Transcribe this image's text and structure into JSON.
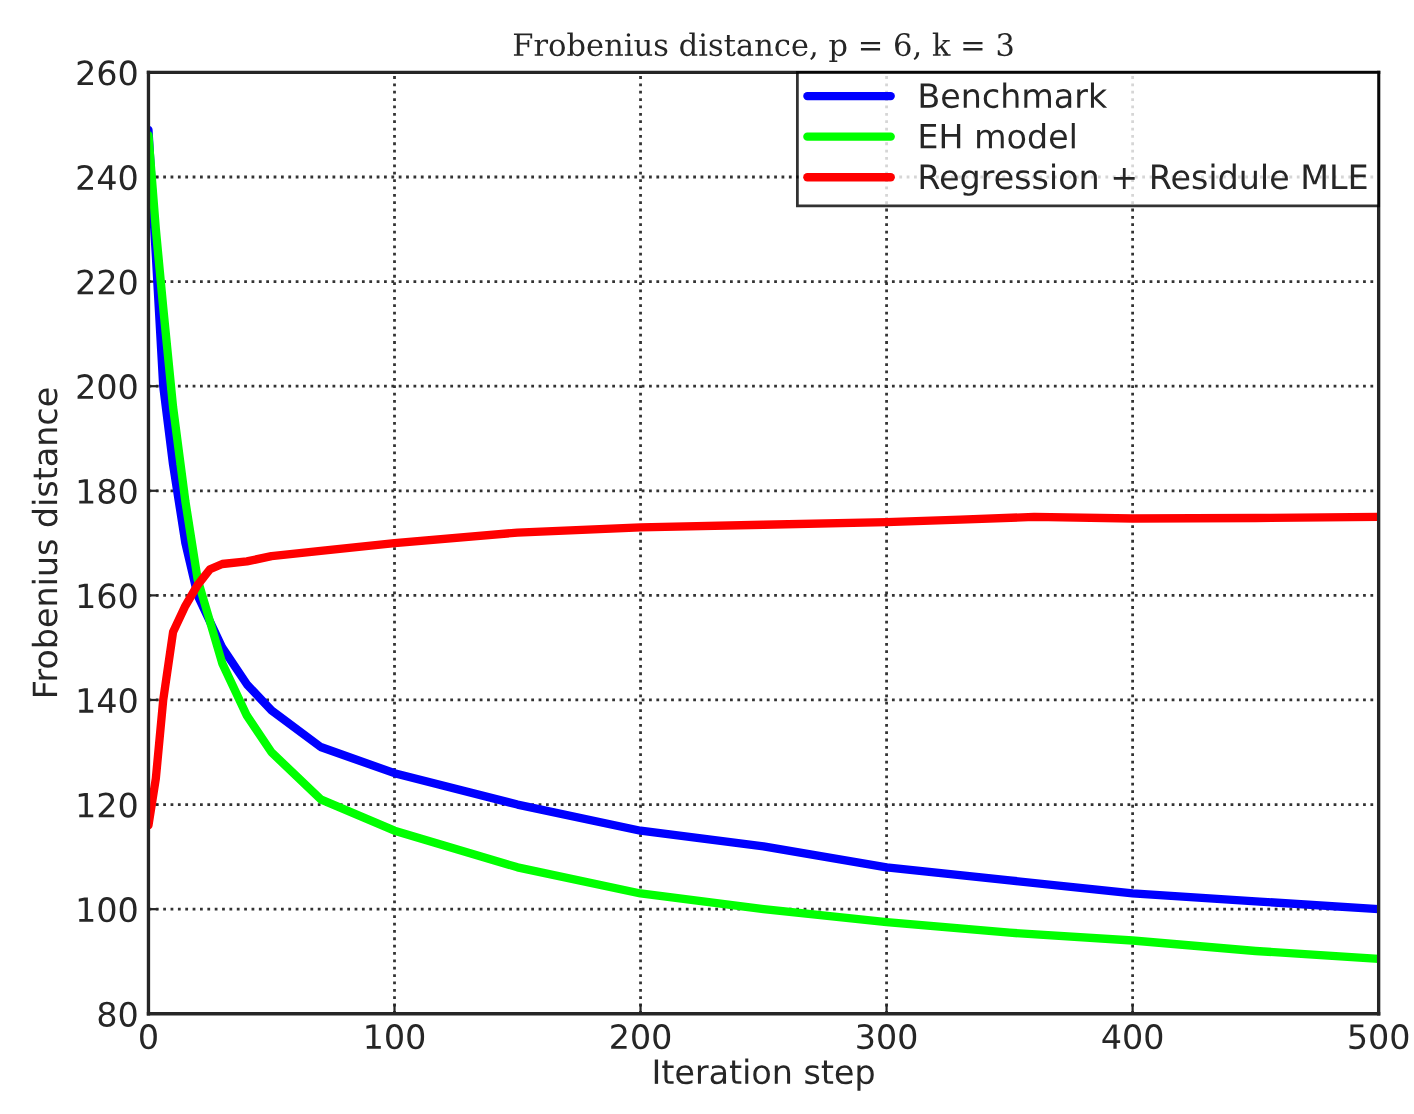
{
  "chart_data": {
    "type": "line",
    "title": "Frobenius distance, p = 6, k = 3",
    "xlabel": "Iteration step",
    "ylabel": "Frobenius distance",
    "xlim": [
      0,
      500
    ],
    "xticks": [
      0,
      100,
      200,
      300,
      400,
      500
    ],
    "ylim": [
      80,
      260
    ],
    "yticks": [
      80,
      100,
      120,
      140,
      160,
      180,
      200,
      220,
      240,
      260
    ],
    "grid": true,
    "legend": "top right",
    "line_style": "solid",
    "series": [
      {
        "name": "Benchmark",
        "color": "#0000ff",
        "x": [
          0,
          3,
          6,
          10,
          15,
          20,
          30,
          40,
          50,
          70,
          100,
          150,
          200,
          250,
          300,
          350,
          400,
          450,
          500
        ],
        "values": [
          249,
          225,
          200,
          185,
          170,
          160,
          150,
          143,
          138,
          131,
          126,
          120,
          115,
          112,
          108,
          105.5,
          103,
          101.5,
          100
        ]
      },
      {
        "name": "EH model",
        "color": "#00ff00",
        "x": [
          0,
          3,
          6,
          10,
          15,
          20,
          30,
          40,
          50,
          70,
          100,
          150,
          200,
          250,
          300,
          350,
          400,
          450,
          500
        ],
        "values": [
          248,
          230,
          215,
          196,
          178,
          163,
          147,
          137,
          130,
          121,
          115,
          108,
          103,
          100,
          97.5,
          95.5,
          94,
          92,
          90.5
        ]
      },
      {
        "name": "Regression + Residule MLE",
        "color": "#ff0000",
        "x": [
          0,
          3,
          6,
          10,
          15,
          20,
          25,
          30,
          40,
          50,
          70,
          100,
          150,
          200,
          250,
          300,
          330,
          360,
          400,
          450,
          500
        ],
        "values": [
          116,
          125,
          140,
          153,
          158,
          162,
          165,
          166,
          166.5,
          167.5,
          168.5,
          170,
          172,
          173,
          173.5,
          174,
          174.5,
          175,
          174.7,
          174.8,
          175
        ]
      }
    ]
  }
}
